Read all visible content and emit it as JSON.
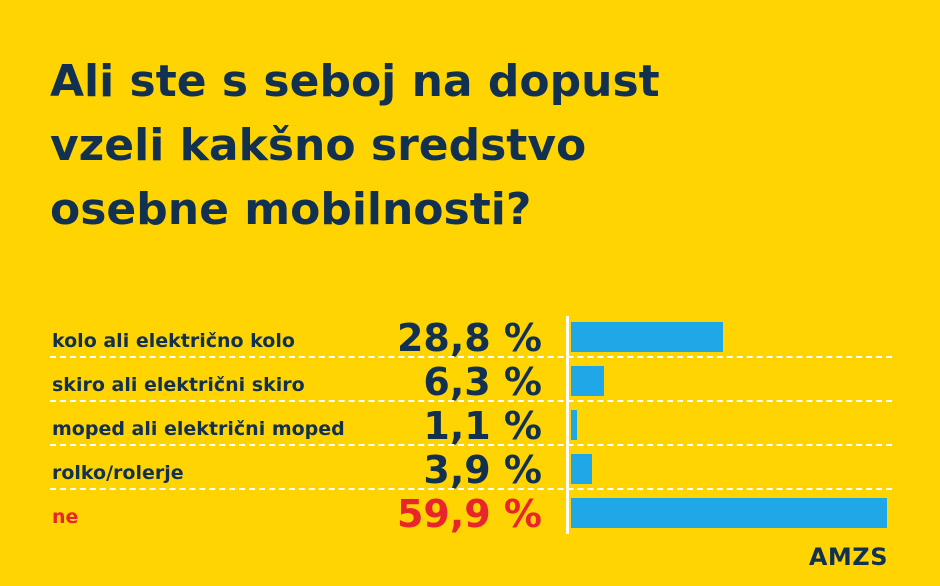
{
  "title_lines": [
    "Ali ste s seboj na dopust",
    "vzeli kakšno sredstvo",
    "osebne mobilnosti?"
  ],
  "brand": "AMZS",
  "colors": {
    "background": "#FFD400",
    "text": "#12304F",
    "highlight": "#E8252B",
    "bar": "#1FA7E8",
    "divider": "#FFFFFF"
  },
  "chart_data": {
    "type": "bar",
    "orientation": "horizontal",
    "title": "Ali ste s seboj na dopust vzeli kakšno sredstvo osebne mobilnosti?",
    "categories": [
      "kolo ali električno kolo",
      "skiro ali električni skiro",
      "moped ali električni moped",
      "rolko/rolerje",
      "ne"
    ],
    "values": [
      28.8,
      6.3,
      1.1,
      3.9,
      59.9
    ],
    "value_labels": [
      "28,8 %",
      "6,3 %",
      "1,1 %",
      "3,9 %",
      "59,9 %"
    ],
    "highlight_index": 4,
    "xlim": [
      0,
      60
    ],
    "unit": "%"
  }
}
